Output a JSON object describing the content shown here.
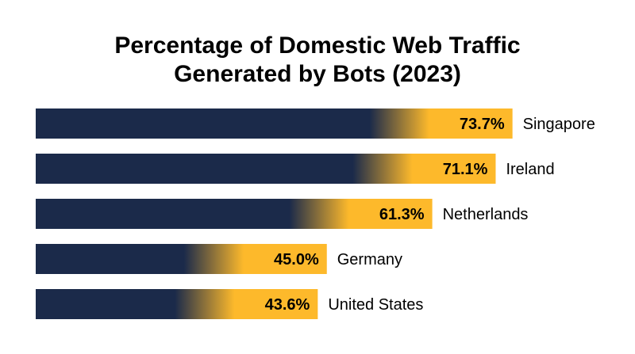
{
  "chart_data": {
    "type": "bar",
    "orientation": "horizontal",
    "title_lines": [
      "Percentage of Domestic Web Traffic",
      "Generated by Bots (2023)"
    ],
    "categories": [
      "Singapore",
      "Ireland",
      "Netherlands",
      "Germany",
      "United States"
    ],
    "values": [
      73.7,
      71.1,
      61.3,
      45.0,
      43.6
    ],
    "value_labels": [
      "73.7%",
      "71.1%",
      "61.3%",
      "45.0%",
      "43.6%"
    ],
    "xlim": [
      0,
      100
    ],
    "grid": false,
    "legend": "none",
    "colors": {
      "bar_base": "#1b2a4a",
      "bar_accent": "#fdb92b",
      "label_text": "#000000"
    }
  }
}
